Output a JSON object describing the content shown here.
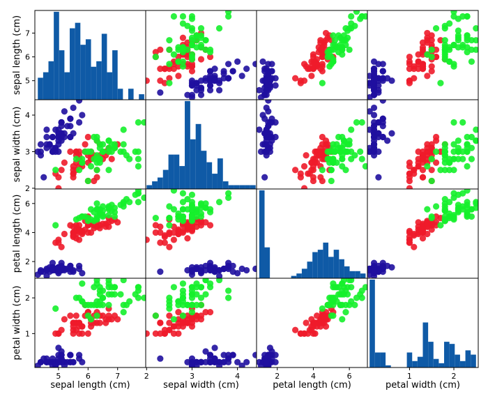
{
  "chart_data": {
    "type": "scatter_matrix",
    "variables": [
      {
        "name": "sepal length (cm)",
        "range": [
          4.2,
          7.95
        ],
        "ticks": [
          5,
          6,
          7
        ]
      },
      {
        "name": "sepal width (cm)",
        "range": [
          1.98,
          4.42
        ],
        "ticks": [
          2,
          3,
          4
        ]
      },
      {
        "name": "petal length (cm)",
        "range": [
          0.85,
          7.0
        ],
        "ticks": [
          2,
          4,
          6
        ]
      },
      {
        "name": "petal width (cm)",
        "range": [
          0.05,
          2.55
        ],
        "ticks": [
          1,
          2
        ]
      }
    ],
    "grid": false,
    "hist_color": "#0f5aa6",
    "class_colors": [
      "#1f0f9e",
      "#ee1b2a",
      "#15ef2b"
    ],
    "histograms": [
      {
        "variable": 0,
        "bins": 20,
        "range": [
          4.3,
          7.9
        ],
        "counts": [
          4,
          5,
          7,
          16,
          9,
          5,
          13,
          14,
          10,
          11,
          6,
          7,
          12,
          5,
          9,
          2,
          0,
          2,
          0,
          1
        ]
      },
      {
        "variable": 1,
        "bins": 20,
        "range": [
          2.0,
          4.4
        ],
        "counts": [
          1,
          2,
          3,
          5,
          9,
          9,
          6,
          23,
          13,
          17,
          10,
          7,
          4,
          8,
          2,
          1,
          1,
          1,
          1,
          1
        ]
      },
      {
        "variable": 2,
        "bins": 20,
        "range": [
          1.0,
          6.9
        ],
        "counts": [
          37,
          13,
          0,
          0,
          0,
          0,
          1,
          2,
          4,
          7,
          11,
          12,
          15,
          9,
          12,
          8,
          5,
          3,
          3,
          2
        ]
      },
      {
        "variable": 3,
        "bins": 20,
        "range": [
          0.1,
          2.5
        ],
        "counts": [
          41,
          7,
          7,
          1,
          0,
          0,
          0,
          7,
          3,
          5,
          21,
          12,
          4,
          2,
          12,
          11,
          6,
          3,
          8,
          6
        ]
      }
    ],
    "points": [
      [
        5.1,
        3.5,
        1.4,
        0.2,
        0
      ],
      [
        4.9,
        3.0,
        1.4,
        0.2,
        0
      ],
      [
        4.7,
        3.2,
        1.3,
        0.2,
        0
      ],
      [
        4.6,
        3.1,
        1.5,
        0.2,
        0
      ],
      [
        5.0,
        3.6,
        1.4,
        0.2,
        0
      ],
      [
        5.4,
        3.9,
        1.7,
        0.4,
        0
      ],
      [
        4.6,
        3.4,
        1.4,
        0.3,
        0
      ],
      [
        5.0,
        3.4,
        1.5,
        0.2,
        0
      ],
      [
        4.4,
        2.9,
        1.4,
        0.2,
        0
      ],
      [
        4.9,
        3.1,
        1.5,
        0.1,
        0
      ],
      [
        5.4,
        3.7,
        1.5,
        0.2,
        0
      ],
      [
        4.8,
        3.4,
        1.6,
        0.2,
        0
      ],
      [
        4.8,
        3.0,
        1.4,
        0.1,
        0
      ],
      [
        4.3,
        3.0,
        1.1,
        0.1,
        0
      ],
      [
        5.8,
        4.0,
        1.2,
        0.2,
        0
      ],
      [
        5.7,
        4.4,
        1.5,
        0.4,
        0
      ],
      [
        5.4,
        3.9,
        1.3,
        0.4,
        0
      ],
      [
        5.1,
        3.5,
        1.4,
        0.3,
        0
      ],
      [
        5.7,
        3.8,
        1.7,
        0.3,
        0
      ],
      [
        5.1,
        3.8,
        1.5,
        0.3,
        0
      ],
      [
        5.4,
        3.4,
        1.7,
        0.2,
        0
      ],
      [
        5.1,
        3.7,
        1.5,
        0.4,
        0
      ],
      [
        4.6,
        3.6,
        1.0,
        0.2,
        0
      ],
      [
        5.1,
        3.3,
        1.7,
        0.5,
        0
      ],
      [
        4.8,
        3.4,
        1.9,
        0.2,
        0
      ],
      [
        5.0,
        3.0,
        1.6,
        0.2,
        0
      ],
      [
        5.0,
        3.4,
        1.6,
        0.4,
        0
      ],
      [
        5.2,
        3.5,
        1.5,
        0.2,
        0
      ],
      [
        5.2,
        3.4,
        1.4,
        0.2,
        0
      ],
      [
        4.7,
        3.2,
        1.6,
        0.2,
        0
      ],
      [
        4.8,
        3.1,
        1.6,
        0.2,
        0
      ],
      [
        5.4,
        3.4,
        1.5,
        0.4,
        0
      ],
      [
        5.2,
        4.1,
        1.5,
        0.1,
        0
      ],
      [
        5.5,
        4.2,
        1.4,
        0.2,
        0
      ],
      [
        4.9,
        3.1,
        1.5,
        0.2,
        0
      ],
      [
        5.0,
        3.2,
        1.2,
        0.2,
        0
      ],
      [
        5.5,
        3.5,
        1.3,
        0.2,
        0
      ],
      [
        4.9,
        3.6,
        1.4,
        0.1,
        0
      ],
      [
        4.4,
        3.0,
        1.3,
        0.2,
        0
      ],
      [
        5.1,
        3.4,
        1.5,
        0.2,
        0
      ],
      [
        5.0,
        3.5,
        1.3,
        0.3,
        0
      ],
      [
        4.5,
        2.3,
        1.3,
        0.3,
        0
      ],
      [
        4.4,
        3.2,
        1.3,
        0.2,
        0
      ],
      [
        5.0,
        3.5,
        1.6,
        0.6,
        0
      ],
      [
        5.1,
        3.8,
        1.9,
        0.4,
        0
      ],
      [
        4.8,
        3.0,
        1.4,
        0.3,
        0
      ],
      [
        5.1,
        3.8,
        1.6,
        0.2,
        0
      ],
      [
        4.6,
        3.2,
        1.4,
        0.2,
        0
      ],
      [
        5.3,
        3.7,
        1.5,
        0.2,
        0
      ],
      [
        5.0,
        3.3,
        1.4,
        0.2,
        0
      ],
      [
        7.0,
        3.2,
        4.7,
        1.4,
        1
      ],
      [
        6.4,
        3.2,
        4.5,
        1.5,
        1
      ],
      [
        6.9,
        3.1,
        4.9,
        1.5,
        1
      ],
      [
        5.5,
        2.3,
        4.0,
        1.3,
        1
      ],
      [
        6.5,
        2.8,
        4.6,
        1.5,
        1
      ],
      [
        5.7,
        2.8,
        4.5,
        1.3,
        1
      ],
      [
        6.3,
        3.3,
        4.7,
        1.6,
        1
      ],
      [
        4.9,
        2.4,
        3.3,
        1.0,
        1
      ],
      [
        6.6,
        2.9,
        4.6,
        1.3,
        1
      ],
      [
        5.2,
        2.7,
        3.9,
        1.4,
        1
      ],
      [
        5.0,
        2.0,
        3.5,
        1.0,
        1
      ],
      [
        5.9,
        3.0,
        4.2,
        1.5,
        1
      ],
      [
        6.0,
        2.2,
        4.0,
        1.0,
        1
      ],
      [
        6.1,
        2.9,
        4.7,
        1.4,
        1
      ],
      [
        5.6,
        2.9,
        3.6,
        1.3,
        1
      ],
      [
        6.7,
        3.1,
        4.4,
        1.4,
        1
      ],
      [
        5.6,
        3.0,
        4.5,
        1.5,
        1
      ],
      [
        5.8,
        2.7,
        4.1,
        1.0,
        1
      ],
      [
        6.2,
        2.2,
        4.5,
        1.5,
        1
      ],
      [
        5.6,
        2.5,
        3.9,
        1.1,
        1
      ],
      [
        5.9,
        3.2,
        4.8,
        1.8,
        1
      ],
      [
        6.1,
        2.8,
        4.0,
        1.3,
        1
      ],
      [
        6.3,
        2.5,
        4.9,
        1.5,
        1
      ],
      [
        6.1,
        2.8,
        4.7,
        1.2,
        1
      ],
      [
        6.4,
        2.9,
        4.3,
        1.3,
        1
      ],
      [
        6.6,
        3.0,
        4.4,
        1.4,
        1
      ],
      [
        6.8,
        2.8,
        4.8,
        1.4,
        1
      ],
      [
        6.7,
        3.0,
        5.0,
        1.7,
        1
      ],
      [
        6.0,
        2.9,
        4.5,
        1.5,
        1
      ],
      [
        5.7,
        2.6,
        3.5,
        1.0,
        1
      ],
      [
        5.5,
        2.4,
        3.8,
        1.1,
        1
      ],
      [
        5.5,
        2.4,
        3.7,
        1.0,
        1
      ],
      [
        5.8,
        2.7,
        3.9,
        1.2,
        1
      ],
      [
        6.0,
        2.7,
        5.1,
        1.6,
        1
      ],
      [
        5.4,
        3.0,
        4.5,
        1.5,
        1
      ],
      [
        6.0,
        3.4,
        4.5,
        1.6,
        1
      ],
      [
        6.7,
        3.1,
        4.7,
        1.5,
        1
      ],
      [
        6.3,
        2.3,
        4.4,
        1.3,
        1
      ],
      [
        5.6,
        3.0,
        4.1,
        1.3,
        1
      ],
      [
        5.5,
        2.5,
        4.0,
        1.3,
        1
      ],
      [
        5.5,
        2.6,
        4.4,
        1.2,
        1
      ],
      [
        6.1,
        3.0,
        4.6,
        1.4,
        1
      ],
      [
        5.8,
        2.6,
        4.0,
        1.2,
        1
      ],
      [
        5.0,
        2.3,
        3.3,
        1.0,
        1
      ],
      [
        5.6,
        2.7,
        4.2,
        1.3,
        1
      ],
      [
        5.7,
        3.0,
        4.2,
        1.2,
        1
      ],
      [
        5.7,
        2.9,
        4.2,
        1.3,
        1
      ],
      [
        6.2,
        2.9,
        4.3,
        1.3,
        1
      ],
      [
        5.1,
        2.5,
        3.0,
        1.1,
        1
      ],
      [
        5.7,
        2.8,
        4.1,
        1.3,
        1
      ],
      [
        6.3,
        3.3,
        6.0,
        2.5,
        2
      ],
      [
        5.8,
        2.7,
        5.1,
        1.9,
        2
      ],
      [
        7.1,
        3.0,
        5.9,
        2.1,
        2
      ],
      [
        6.3,
        2.9,
        5.6,
        1.8,
        2
      ],
      [
        6.5,
        3.0,
        5.8,
        2.2,
        2
      ],
      [
        7.6,
        3.0,
        6.6,
        2.1,
        2
      ],
      [
        4.9,
        2.5,
        4.5,
        1.7,
        2
      ],
      [
        7.3,
        2.9,
        6.3,
        1.8,
        2
      ],
      [
        6.7,
        2.5,
        5.8,
        1.8,
        2
      ],
      [
        7.2,
        3.6,
        6.1,
        2.5,
        2
      ],
      [
        6.5,
        3.2,
        5.1,
        2.0,
        2
      ],
      [
        6.4,
        2.7,
        5.3,
        1.9,
        2
      ],
      [
        6.8,
        3.0,
        5.5,
        2.1,
        2
      ],
      [
        5.7,
        2.5,
        5.0,
        2.0,
        2
      ],
      [
        5.8,
        2.8,
        5.1,
        2.4,
        2
      ],
      [
        6.4,
        3.2,
        5.3,
        2.3,
        2
      ],
      [
        6.5,
        3.0,
        5.5,
        1.8,
        2
      ],
      [
        7.7,
        3.8,
        6.7,
        2.2,
        2
      ],
      [
        7.7,
        2.6,
        6.9,
        2.3,
        2
      ],
      [
        6.0,
        2.2,
        5.0,
        1.5,
        2
      ],
      [
        6.9,
        3.2,
        5.7,
        2.3,
        2
      ],
      [
        5.6,
        2.8,
        4.9,
        2.0,
        2
      ],
      [
        7.7,
        2.8,
        6.7,
        2.0,
        2
      ],
      [
        6.3,
        2.7,
        4.9,
        1.8,
        2
      ],
      [
        6.7,
        3.3,
        5.7,
        2.1,
        2
      ],
      [
        7.2,
        3.2,
        6.0,
        1.8,
        2
      ],
      [
        6.2,
        2.8,
        4.8,
        1.8,
        2
      ],
      [
        6.1,
        3.0,
        4.9,
        1.8,
        2
      ],
      [
        6.4,
        2.8,
        5.6,
        2.1,
        2
      ],
      [
        7.2,
        3.0,
        5.8,
        1.6,
        2
      ],
      [
        7.4,
        2.8,
        6.1,
        1.9,
        2
      ],
      [
        7.9,
        3.8,
        6.4,
        2.0,
        2
      ],
      [
        6.4,
        2.8,
        5.6,
        2.2,
        2
      ],
      [
        6.3,
        2.8,
        5.1,
        1.5,
        2
      ],
      [
        6.1,
        2.6,
        5.6,
        1.4,
        2
      ],
      [
        7.7,
        3.0,
        6.1,
        2.3,
        2
      ],
      [
        6.3,
        3.4,
        5.6,
        2.4,
        2
      ],
      [
        6.4,
        3.1,
        5.5,
        1.8,
        2
      ],
      [
        6.0,
        3.0,
        4.8,
        1.8,
        2
      ],
      [
        6.9,
        3.1,
        5.4,
        2.1,
        2
      ],
      [
        6.7,
        3.1,
        5.6,
        2.4,
        2
      ],
      [
        6.9,
        3.1,
        5.1,
        2.3,
        2
      ],
      [
        5.8,
        2.7,
        5.1,
        1.9,
        2
      ],
      [
        6.8,
        3.2,
        5.9,
        2.3,
        2
      ],
      [
        6.7,
        3.3,
        5.7,
        2.5,
        2
      ],
      [
        6.7,
        3.0,
        5.2,
        2.3,
        2
      ],
      [
        6.3,
        2.5,
        5.0,
        1.9,
        2
      ],
      [
        6.5,
        3.0,
        5.2,
        2.0,
        2
      ],
      [
        6.2,
        3.4,
        5.4,
        2.3,
        2
      ],
      [
        5.9,
        3.0,
        5.1,
        1.8,
        2
      ]
    ]
  }
}
